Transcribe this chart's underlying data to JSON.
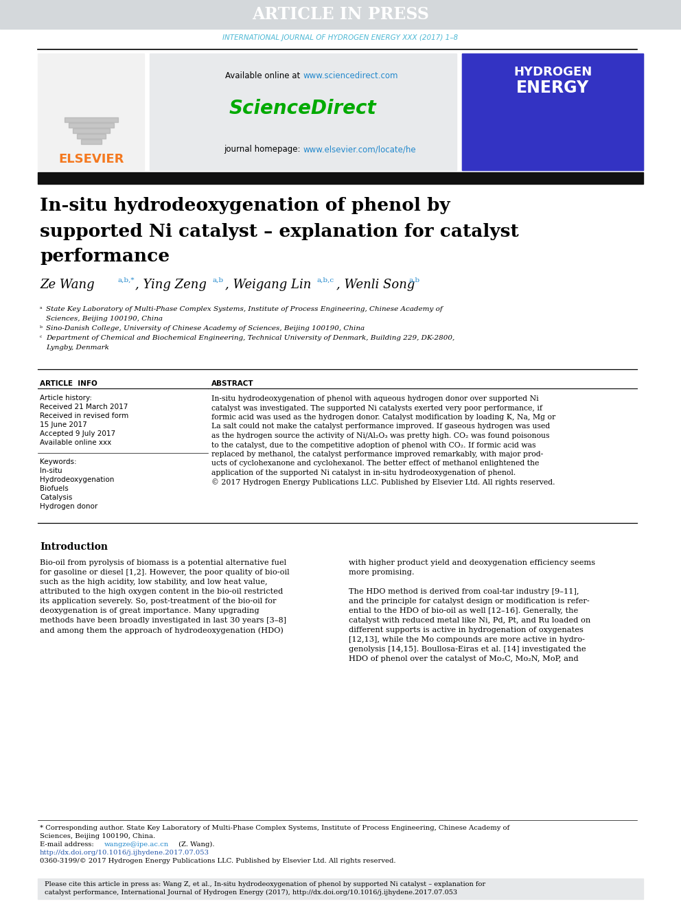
{
  "bg_color": "#ffffff",
  "header_bg": "#d4d8db",
  "header_text": "ARTICLE IN PRESS",
  "header_text_color": "#ffffff",
  "journal_line": "INTERNATIONAL JOURNAL OF HYDROGEN ENERGY XXX (2017) 1–8",
  "journal_line_color": "#4db8d4",
  "sciencedirect_bg": "#e8eaec",
  "available_text": "Available online at ",
  "available_url": "www.sciencedirect.com",
  "sciencedirect_label": "ScienceDirect",
  "sciencedirect_color": "#00aa00",
  "journal_homepage": "journal homepage: ",
  "journal_url": "www.elsevier.com/locate/he",
  "url_color": "#2288cc",
  "elsevier_color": "#f47920",
  "title_line1": "In-situ hydrodeoxygenation of phenol by",
  "title_line2": "supported Ni catalyst – explanation for catalyst",
  "title_line3": "performance",
  "article_info_title": "ARTICLE  INFO",
  "article_history": "Article history:",
  "received": "Received 21 March 2017",
  "revised1": "Received in revised form",
  "revised2": "15 June 2017",
  "accepted": "Accepted 9 July 2017",
  "available_online": "Available online xxx",
  "keywords_title": "Keywords:",
  "keywords": [
    "In-situ",
    "Hydrodeoxygenation",
    "Biofuels",
    "Catalysis",
    "Hydrogen donor"
  ],
  "abstract_title": "ABSTRACT",
  "intro_title": "Introduction",
  "footnote_doi": "http://dx.doi.org/10.1016/j.ijhydene.2017.07.053",
  "footnote_issn": "0360-3199/© 2017 Hydrogen Energy Publications LLC. Published by Elsevier Ltd. All rights reserved.",
  "url_color_doi": "#2255aa"
}
